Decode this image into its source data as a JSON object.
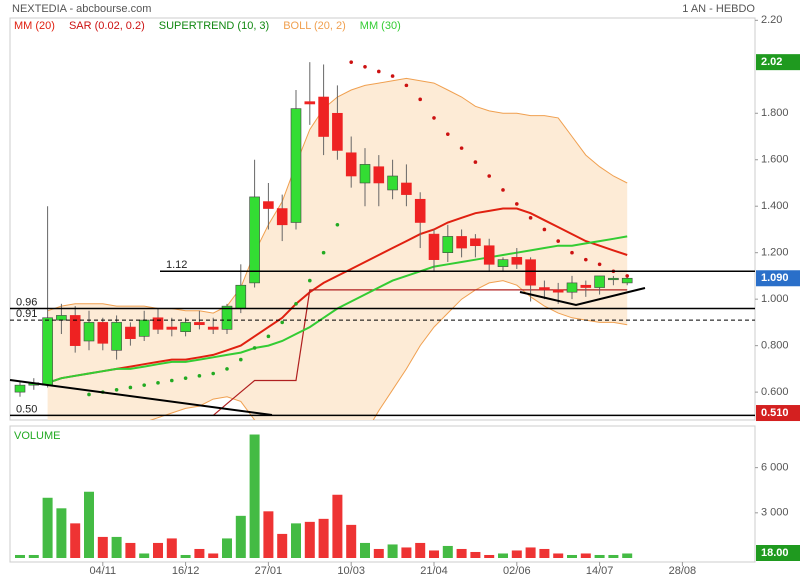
{
  "chart_data": {
    "type": "candlestick",
    "title": "NEXTEDIA - abcbourse.com",
    "period": "1 AN - HEBDO",
    "categories": [
      null,
      null,
      null,
      null,
      null,
      null,
      "04/11",
      null,
      null,
      null,
      null,
      null,
      "16/12",
      null,
      null,
      null,
      null,
      null,
      "27/01",
      null,
      null,
      null,
      null,
      null,
      "10/03",
      null,
      null,
      null,
      null,
      null,
      "21/04",
      null,
      null,
      null,
      null,
      null,
      "02/06",
      null,
      null,
      null,
      null,
      null,
      "14/07",
      null,
      null,
      null,
      null,
      null,
      "28/08"
    ],
    "open": [
      0.6,
      0.63,
      0.63,
      0.91,
      0.93,
      0.82,
      0.9,
      0.78,
      0.88,
      0.84,
      0.92,
      0.88,
      0.86,
      0.9,
      0.88,
      0.87,
      0.96,
      1.07,
      1.42,
      1.39,
      1.33,
      1.85,
      1.87,
      1.8,
      1.63,
      1.5,
      1.57,
      1.47,
      1.5,
      1.43,
      1.28,
      1.2,
      1.27,
      1.26,
      1.23,
      1.14,
      1.18,
      1.17,
      1.05,
      1.04,
      1.03,
      1.06,
      1.05,
      1.09,
      1.07,
      null,
      null,
      null,
      null
    ],
    "high": [
      0.65,
      0.66,
      1.4,
      0.98,
      0.97,
      0.95,
      0.92,
      0.93,
      0.9,
      0.95,
      0.96,
      0.92,
      0.92,
      0.95,
      0.92,
      0.98,
      1.15,
      1.6,
      1.5,
      1.45,
      1.9,
      2.02,
      2.01,
      1.92,
      1.7,
      1.65,
      1.62,
      1.6,
      1.58,
      1.46,
      1.3,
      1.32,
      1.3,
      1.28,
      1.26,
      1.18,
      1.22,
      1.18,
      1.08,
      1.07,
      1.1,
      1.08,
      1.1,
      1.1,
      1.1,
      null,
      null,
      null,
      null
    ],
    "low": [
      0.58,
      0.61,
      0.62,
      0.85,
      0.77,
      0.78,
      0.78,
      0.74,
      0.8,
      0.82,
      0.85,
      0.84,
      0.84,
      0.87,
      0.85,
      0.85,
      0.94,
      1.05,
      1.3,
      1.25,
      1.3,
      1.75,
      1.62,
      1.6,
      1.48,
      1.4,
      1.4,
      1.43,
      1.4,
      1.22,
      1.12,
      1.16,
      1.18,
      1.18,
      1.12,
      1.12,
      1.13,
      0.99,
      1.0,
      0.98,
      1.0,
      1.01,
      1.02,
      1.06,
      1.06,
      null,
      null,
      null,
      null
    ],
    "close": [
      0.63,
      0.64,
      0.92,
      0.93,
      0.8,
      0.9,
      0.81,
      0.9,
      0.83,
      0.91,
      0.87,
      0.87,
      0.9,
      0.89,
      0.87,
      0.97,
      1.06,
      1.44,
      1.39,
      1.32,
      1.82,
      1.84,
      1.7,
      1.64,
      1.53,
      1.58,
      1.5,
      1.53,
      1.45,
      1.33,
      1.17,
      1.27,
      1.22,
      1.23,
      1.15,
      1.17,
      1.15,
      1.06,
      1.04,
      1.03,
      1.07,
      1.05,
      1.1,
      1.09,
      1.09,
      null,
      null,
      null,
      null
    ],
    "up_color": "#33dd33",
    "down_color": "#ee2222",
    "ylim": [
      0.48,
      2.21
    ],
    "yticks": [
      {
        "value": 0.6,
        "label": "0.600"
      },
      {
        "value": 0.8,
        "label": "0.800"
      },
      {
        "value": 1.0,
        "label": "1.000"
      },
      {
        "value": 1.2,
        "label": "1.200"
      },
      {
        "value": 1.4,
        "label": "1.400"
      },
      {
        "value": 1.6,
        "label": "1.600"
      },
      {
        "value": 1.8,
        "label": "1.800"
      },
      {
        "value": 2.2,
        "label": "2.20"
      }
    ],
    "series": [
      {
        "name": "MM (20)",
        "style": "line",
        "color": "#e02010",
        "values": [
          null,
          null,
          0.64,
          0.66,
          0.67,
          0.68,
          0.69,
          0.7,
          0.71,
          0.72,
          0.73,
          0.74,
          0.74,
          0.75,
          0.76,
          0.78,
          0.8,
          0.84,
          0.88,
          0.92,
          0.98,
          1.03,
          1.07,
          1.1,
          1.13,
          1.16,
          1.19,
          1.22,
          1.25,
          1.28,
          1.3,
          1.33,
          1.35,
          1.37,
          1.38,
          1.39,
          1.39,
          1.37,
          1.34,
          1.31,
          1.28,
          1.25,
          1.23,
          1.21,
          1.19,
          null,
          null,
          null,
          null
        ]
      },
      {
        "name": "SAR (0.02, 0.2)",
        "style": "dots",
        "color": "#cc1111",
        "up_color": "#22aa22",
        "values": [
          null,
          null,
          null,
          null,
          null,
          0.59,
          0.6,
          0.61,
          0.62,
          0.63,
          0.64,
          0.65,
          0.66,
          0.67,
          0.68,
          0.7,
          0.74,
          0.79,
          0.84,
          0.9,
          0.98,
          1.08,
          1.2,
          1.32,
          2.02,
          2.0,
          1.98,
          1.96,
          1.92,
          1.86,
          1.78,
          1.71,
          1.65,
          1.59,
          1.53,
          1.47,
          1.41,
          1.35,
          1.3,
          1.25,
          1.2,
          1.17,
          1.15,
          1.12,
          1.1,
          null,
          null,
          null,
          null
        ]
      },
      {
        "name": "SUPERTREND (10, 3)",
        "style": "line",
        "color": "#118811",
        "line_color": "#b02020",
        "values": [
          null,
          null,
          null,
          null,
          null,
          null,
          null,
          null,
          null,
          null,
          null,
          null,
          null,
          null,
          0.5,
          0.55,
          0.6,
          0.65,
          0.65,
          0.65,
          0.65,
          1.04,
          1.04,
          1.04,
          1.04,
          1.04,
          1.04,
          1.04,
          1.04,
          1.04,
          1.04,
          1.04,
          1.04,
          1.04,
          1.04,
          1.04,
          1.04,
          1.04,
          1.04,
          1.04,
          1.04,
          1.04,
          1.04,
          1.04,
          1.04,
          null,
          null,
          null,
          null
        ]
      },
      {
        "name": "BOLL (20, 2)",
        "style": "band",
        "color": "#f0a050",
        "fill": "#fdebd6",
        "upper": [
          null,
          null,
          0.95,
          0.97,
          0.98,
          0.98,
          0.98,
          0.97,
          0.97,
          0.97,
          0.96,
          0.96,
          0.95,
          0.95,
          0.94,
          0.97,
          1.05,
          1.2,
          1.32,
          1.42,
          1.58,
          1.73,
          1.82,
          1.87,
          1.9,
          1.92,
          1.93,
          1.94,
          1.95,
          1.94,
          1.93,
          1.9,
          1.87,
          1.83,
          1.81,
          1.8,
          1.8,
          1.79,
          1.79,
          1.78,
          1.7,
          1.62,
          1.57,
          1.53,
          1.5,
          null,
          null,
          null,
          null
        ],
        "lower": [
          null,
          null,
          0.35,
          0.36,
          0.37,
          0.38,
          0.4,
          0.42,
          0.45,
          0.47,
          0.49,
          0.51,
          0.53,
          0.54,
          0.57,
          0.58,
          0.56,
          0.48,
          0.44,
          0.42,
          0.38,
          0.34,
          0.33,
          0.34,
          0.36,
          0.42,
          0.52,
          0.61,
          0.7,
          0.8,
          0.88,
          0.94,
          1.0,
          1.04,
          1.07,
          1.08,
          1.06,
          1.01,
          0.97,
          0.94,
          0.92,
          0.91,
          0.9,
          0.9,
          0.89,
          null,
          null,
          null,
          null
        ]
      },
      {
        "name": "MM (30)",
        "style": "line",
        "color": "#33cc33",
        "values": [
          null,
          null,
          0.64,
          0.66,
          0.67,
          0.68,
          0.69,
          0.7,
          0.7,
          0.71,
          0.72,
          0.73,
          0.73,
          0.74,
          0.75,
          0.76,
          0.77,
          0.79,
          0.8,
          0.82,
          0.85,
          0.88,
          0.92,
          0.96,
          0.99,
          1.02,
          1.05,
          1.08,
          1.1,
          1.12,
          1.14,
          1.15,
          1.16,
          1.17,
          1.18,
          1.19,
          1.2,
          1.21,
          1.22,
          1.23,
          1.23,
          1.24,
          1.25,
          1.26,
          1.27,
          null,
          null,
          null,
          null
        ]
      }
    ],
    "levels": [
      1.12,
      0.96,
      0.91,
      {
        "value": 0.5,
        "label": "0.50"
      }
    ],
    "level_styles": [
      "solid",
      "solid",
      "dashed",
      "solid"
    ],
    "price_markers": [
      {
        "value": 2.02,
        "color": "#1f9a1f"
      },
      {
        "value": 1.09,
        "label": "1.090",
        "color": "#2a6fc9"
      },
      {
        "value": 0.51,
        "label": "0.510",
        "color": "#d42020"
      }
    ],
    "volume": {
      "label": "VOLUME",
      "values": [
        200,
        200,
        4000,
        3300,
        2300,
        4400,
        1400,
        1400,
        1000,
        300,
        1000,
        1300,
        200,
        600,
        300,
        1300,
        2800,
        8200,
        3100,
        1600,
        2300,
        2400,
        2600,
        4200,
        2200,
        1000,
        600,
        900,
        700,
        1000,
        500,
        800,
        600,
        400,
        200,
        300,
        500,
        700,
        600,
        300,
        200,
        300,
        200,
        200,
        300,
        null,
        null,
        null,
        null
      ],
      "ylim": [
        0,
        8500
      ],
      "yticks": [
        {
          "value": 3000,
          "label": "3 000"
        },
        {
          "value": 6000,
          "label": "6 000"
        }
      ],
      "marker": {
        "value": 18,
        "label": "18.00",
        "color": "#1f9a1f"
      }
    }
  }
}
